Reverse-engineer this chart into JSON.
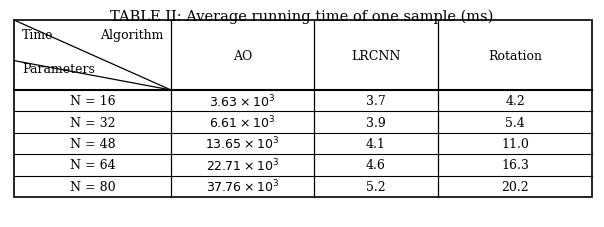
{
  "title": "TABLE II: Average running time of one sample (ms)",
  "header_labels": [
    "AO",
    "LRCNN",
    "Rotation"
  ],
  "corner_top": "Time",
  "corner_right": "Algorithm",
  "corner_bottom": "Parameters",
  "ao_values": [
    "3.63",
    "6.61",
    "13.65",
    "22.71",
    "37.76"
  ],
  "lrcnn_values": [
    "3.7",
    "3.9",
    "4.1",
    "4.6",
    "5.2"
  ],
  "rotation_values": [
    "4.2",
    "5.4",
    "11.0",
    "16.3",
    "20.2"
  ],
  "n_values": [
    "N = 16",
    "N = 32",
    "N = 48",
    "N = 64",
    "N = 80"
  ],
  "fig_width": 6.04,
  "fig_height": 2.28,
  "dpi": 100
}
